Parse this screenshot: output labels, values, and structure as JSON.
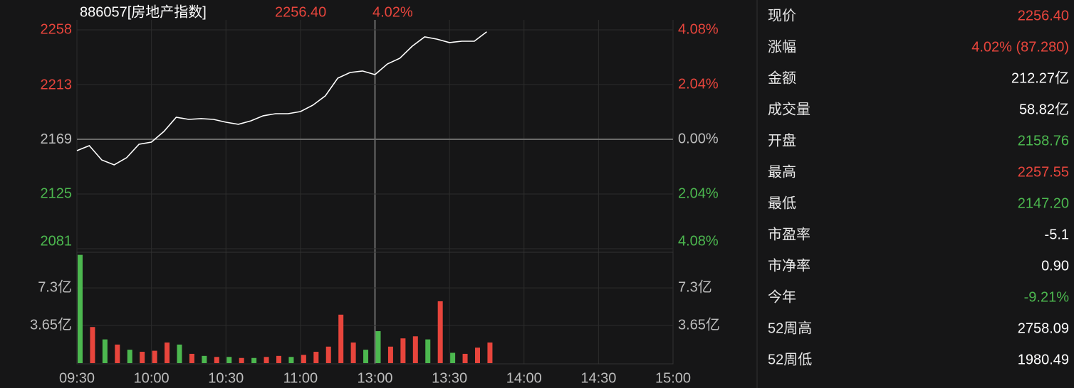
{
  "header": {
    "code_name": "886057[房地产指数]",
    "price": "2256.40",
    "change": "4.02%",
    "color": "#e8453c"
  },
  "chart_data": [
    {
      "type": "line",
      "x": [
        "09:30",
        "09:35",
        "09:40",
        "09:45",
        "09:50",
        "09:55",
        "10:00",
        "10:05",
        "10:10",
        "10:15",
        "10:20",
        "10:25",
        "10:30",
        "10:35",
        "10:40",
        "10:45",
        "10:50",
        "10:55",
        "11:00",
        "11:05",
        "11:10",
        "11:15",
        "11:20",
        "11:25",
        "11:30",
        "13:05",
        "13:10",
        "13:15",
        "13:20",
        "13:25",
        "13:30",
        "13:35",
        "13:40",
        "13:45"
      ],
      "values": [
        2160.3,
        2164.3,
        2152.8,
        2148.8,
        2154.6,
        2165.5,
        2167.2,
        2175.8,
        2187.3,
        2185.6,
        2186.2,
        2185.6,
        2183.3,
        2181.6,
        2184.4,
        2188.5,
        2190.2,
        2190.2,
        2191.9,
        2197.1,
        2204.6,
        2218.9,
        2223.5,
        2224.7,
        2221.8,
        2230.4,
        2235.0,
        2244.8,
        2252.3,
        2250.5,
        2247.7,
        2248.8,
        2248.8,
        2256.4
      ],
      "color": "#ffffff",
      "xticks": [
        "09:30",
        "10:00",
        "10:30",
        "11:00",
        "13:00",
        "13:30",
        "14:00",
        "14:30",
        "15:00"
      ],
      "ylim": [
        2081,
        2258
      ],
      "yticks": [
        2258,
        2213,
        2169,
        2125,
        2081
      ],
      "y2lim": [
        -4.08,
        4.08
      ],
      "y2ticks": [
        {
          "value": 4.08,
          "label": "4.08%"
        },
        {
          "value": 2.04,
          "label": "2.04%"
        },
        {
          "value": 0,
          "label": "0.00%"
        },
        {
          "value": -2.04,
          "label": "2.04%"
        },
        {
          "value": -4.08,
          "label": "4.08%"
        }
      ],
      "grid": true,
      "up_color": "#e8453c",
      "down_color": "#4cb84f",
      "flat_color": "#bdbdbd"
    },
    {
      "type": "bar",
      "x": [
        "09:30",
        "09:35",
        "09:40",
        "09:45",
        "09:50",
        "09:55",
        "10:00",
        "10:05",
        "10:10",
        "10:15",
        "10:20",
        "10:25",
        "10:30",
        "10:35",
        "10:40",
        "10:45",
        "10:50",
        "10:55",
        "11:00",
        "11:05",
        "11:10",
        "11:15",
        "11:20",
        "11:25",
        "11:30",
        "13:05",
        "13:10",
        "13:15",
        "13:20",
        "13:25",
        "13:30",
        "13:35",
        "13:40",
        "13:45"
      ],
      "values": [
        10.5,
        3.5,
        2.3,
        1.8,
        1.3,
        1.1,
        1.2,
        2.0,
        1.8,
        0.9,
        0.7,
        0.6,
        0.6,
        0.5,
        0.5,
        0.6,
        0.7,
        0.6,
        0.8,
        1.1,
        1.6,
        4.7,
        2.0,
        1.3,
        3.1,
        1.6,
        2.4,
        2.6,
        2.3,
        6.0,
        1.0,
        0.9,
        1.5,
        2.0
      ],
      "colors": [
        "#4cb84f",
        "#e8453c",
        "#4cb84f",
        "#e8453c",
        "#4cb84f",
        "#e8453c",
        "#e8453c",
        "#e8453c",
        "#4cb84f",
        "#e8453c",
        "#4cb84f",
        "#e8453c",
        "#4cb84f",
        "#e8453c",
        "#4cb84f",
        "#e8453c",
        "#e8453c",
        "#4cb84f",
        "#e8453c",
        "#e8453c",
        "#e8453c",
        "#e8453c",
        "#e8453c",
        "#4cb84f",
        "#4cb84f",
        "#e8453c",
        "#e8453c",
        "#e8453c",
        "#4cb84f",
        "#e8453c",
        "#4cb84f",
        "#e8453c",
        "#e8453c",
        "#e8453c"
      ],
      "ylim": [
        0,
        10.75
      ],
      "yticks": [
        {
          "value": 7.3,
          "label": "7.3亿"
        },
        {
          "value": 3.65,
          "label": "3.65亿"
        }
      ],
      "grid": true
    }
  ],
  "quote_panel": {
    "rows": [
      {
        "label": "现价",
        "value": "2256.40",
        "color": "#e8453c"
      },
      {
        "label": "涨幅",
        "value": "4.02% (87.280)",
        "color": "#e8453c"
      },
      {
        "label": "金额",
        "value": "212.27亿",
        "color": "#ffffff"
      },
      {
        "label": "成交量",
        "value": "58.82亿",
        "color": "#ffffff"
      },
      {
        "label": "开盘",
        "value": "2158.76",
        "color": "#4cb84f"
      },
      {
        "label": "最高",
        "value": "2257.55",
        "color": "#e8453c"
      },
      {
        "label": "最低",
        "value": "2147.20",
        "color": "#4cb84f"
      },
      {
        "label": "市盈率",
        "value": "-5.1",
        "color": "#ffffff"
      },
      {
        "label": "市净率",
        "value": "0.90",
        "color": "#ffffff"
      },
      {
        "label": "今年",
        "value": "-9.21%",
        "color": "#4cb84f"
      },
      {
        "label": "52周高",
        "value": "2758.09",
        "color": "#ffffff"
      },
      {
        "label": "52周低",
        "value": "1980.49",
        "color": "#ffffff"
      }
    ]
  }
}
